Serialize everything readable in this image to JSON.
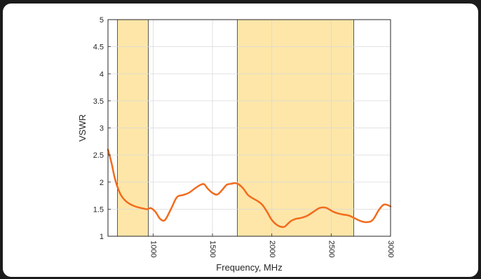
{
  "chart_data": {
    "type": "line",
    "xlabel": "Frequency, MHz",
    "ylabel": "VSWR",
    "xlim": [
      620,
      3000
    ],
    "ylim": [
      1,
      5
    ],
    "xticks": [
      1000,
      1500,
      2000,
      2500,
      3000
    ],
    "yticks": [
      1,
      1.5,
      2,
      2.5,
      3,
      3.5,
      4,
      4.5,
      5
    ],
    "ytick_labels": [
      "1",
      "1.5",
      "2",
      "2.5",
      "3",
      "3.5",
      "4",
      "4.5",
      "5"
    ],
    "grid": true,
    "bands": [
      {
        "x": [
          700,
          960
        ]
      },
      {
        "x": [
          1710,
          2690
        ]
      }
    ],
    "band_color": "#fde6a8",
    "series": [
      {
        "color": "#f26b1d",
        "x": [
          620,
          650,
          680,
          720,
          760,
          800,
          850,
          900,
          950,
          980,
          1020,
          1060,
          1100,
          1150,
          1200,
          1250,
          1300,
          1350,
          1400,
          1430,
          1460,
          1500,
          1540,
          1580,
          1620,
          1660,
          1690,
          1720,
          1760,
          1800,
          1840,
          1880,
          1920,
          1960,
          2000,
          2050,
          2100,
          2130,
          2160,
          2200,
          2250,
          2300,
          2350,
          2400,
          2450,
          2480,
          2520,
          2560,
          2600,
          2650,
          2700,
          2750,
          2800,
          2850,
          2900,
          2940,
          2970,
          3000
        ],
        "y": [
          2.6,
          2.35,
          2.05,
          1.8,
          1.67,
          1.6,
          1.55,
          1.52,
          1.5,
          1.52,
          1.45,
          1.32,
          1.3,
          1.5,
          1.72,
          1.76,
          1.8,
          1.88,
          1.95,
          1.96,
          1.88,
          1.8,
          1.77,
          1.85,
          1.95,
          1.97,
          1.98,
          1.96,
          1.88,
          1.76,
          1.7,
          1.65,
          1.58,
          1.45,
          1.3,
          1.2,
          1.17,
          1.22,
          1.28,
          1.32,
          1.34,
          1.38,
          1.45,
          1.52,
          1.53,
          1.5,
          1.45,
          1.42,
          1.4,
          1.38,
          1.33,
          1.28,
          1.26,
          1.3,
          1.48,
          1.58,
          1.58,
          1.55
        ]
      }
    ]
  }
}
